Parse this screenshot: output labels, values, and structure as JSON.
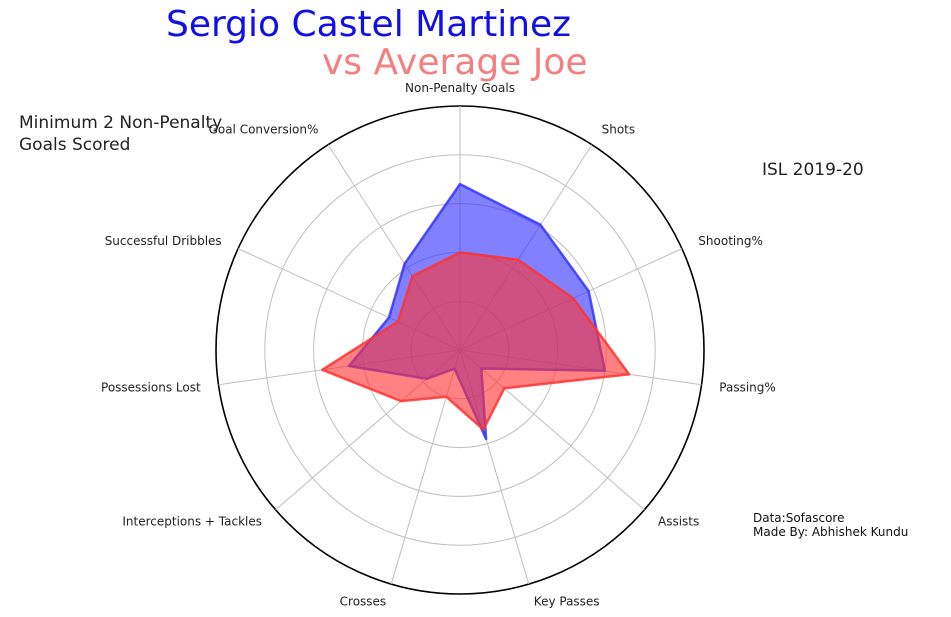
{
  "header": {
    "player": "Sergio Castel Martinez",
    "comparison": "vs Average Joe"
  },
  "notes": {
    "criteria_line1": "Minimum 2 Non-Penalty",
    "criteria_line2": "Goals Scored",
    "season": "ISL 2019-20",
    "source": "Data:Sofascore",
    "author": "Made By: Abhishek Kundu"
  },
  "colors": {
    "player": "#3333ff",
    "average": "#ff3333",
    "grid": "#bfbfbf",
    "outer": "#000000"
  },
  "chart_data": {
    "type": "radar",
    "axes": [
      "Non-Penalty Goals",
      "Shots",
      "Shooting%",
      "Passing%",
      "Assists",
      "Key Passes",
      "Crosses",
      "Interceptions + Tackles",
      "Possessions Lost",
      "Successful Dribbles",
      "Goal Conversion%"
    ],
    "rmax": 5,
    "rings": 5,
    "grid": true,
    "series": [
      {
        "name": "Sergio Castel Martinez",
        "values": [
          3.4,
          3.05,
          2.9,
          3.0,
          0.58,
          1.9,
          0.4,
          0.9,
          2.3,
          1.6,
          2.1
        ]
      },
      {
        "name": "Average Joe",
        "values": [
          2.0,
          2.2,
          2.55,
          3.5,
          1.2,
          1.7,
          1.0,
          1.6,
          2.85,
          1.4,
          1.8
        ]
      }
    ]
  }
}
